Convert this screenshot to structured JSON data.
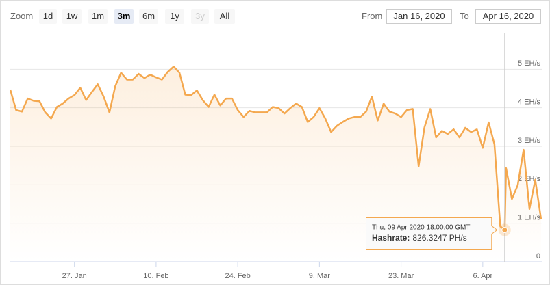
{
  "range_selector": {
    "zoom_label": "Zoom",
    "buttons": [
      "1d",
      "1w",
      "1m",
      "3m",
      "6m",
      "1y",
      "3y",
      "All"
    ],
    "selected": "3m",
    "disabled": [
      "3y"
    ],
    "from_label": "From",
    "from": "Jan 16, 2020",
    "to_label": "To",
    "to": "Apr 16, 2020"
  },
  "chart_data": {
    "type": "area",
    "color": "#f4a84f",
    "x": [
      "2020-01-16",
      "2020-01-17",
      "2020-01-18",
      "2020-01-19",
      "2020-01-20",
      "2020-01-21",
      "2020-01-22",
      "2020-01-23",
      "2020-01-24",
      "2020-01-25",
      "2020-01-26",
      "2020-01-27",
      "2020-01-28",
      "2020-01-29",
      "2020-01-30",
      "2020-01-31",
      "2020-02-01",
      "2020-02-02",
      "2020-02-03",
      "2020-02-04",
      "2020-02-05",
      "2020-02-06",
      "2020-02-07",
      "2020-02-08",
      "2020-02-09",
      "2020-02-10",
      "2020-02-11",
      "2020-02-12",
      "2020-02-13",
      "2020-02-14",
      "2020-02-15",
      "2020-02-16",
      "2020-02-17",
      "2020-02-18",
      "2020-02-19",
      "2020-02-20",
      "2020-02-21",
      "2020-02-22",
      "2020-02-23",
      "2020-02-24",
      "2020-02-25",
      "2020-02-26",
      "2020-02-27",
      "2020-02-28",
      "2020-02-29",
      "2020-03-01",
      "2020-03-02",
      "2020-03-03",
      "2020-03-04",
      "2020-03-05",
      "2020-03-06",
      "2020-03-07",
      "2020-03-08",
      "2020-03-09",
      "2020-03-10",
      "2020-03-11",
      "2020-03-12",
      "2020-03-13",
      "2020-03-14",
      "2020-03-15",
      "2020-03-16",
      "2020-03-17",
      "2020-03-18",
      "2020-03-19",
      "2020-03-20",
      "2020-03-21",
      "2020-03-22",
      "2020-03-23",
      "2020-03-24",
      "2020-03-25",
      "2020-03-26",
      "2020-03-27",
      "2020-03-28",
      "2020-03-29",
      "2020-03-30",
      "2020-03-31",
      "2020-04-01",
      "2020-04-02",
      "2020-04-03",
      "2020-04-04",
      "2020-04-05",
      "2020-04-06",
      "2020-04-07",
      "2020-04-08",
      "2020-04-09",
      "2020-04-09 18:00",
      "2020-04-10",
      "2020-04-11",
      "2020-04-12",
      "2020-04-13",
      "2020-04-14",
      "2020-04-15",
      "2020-04-16"
    ],
    "values": [
      4.47,
      3.94,
      3.9,
      4.24,
      4.18,
      4.17,
      3.88,
      3.72,
      4.02,
      4.11,
      4.24,
      4.33,
      4.52,
      4.2,
      4.41,
      4.61,
      4.29,
      3.88,
      4.56,
      4.91,
      4.73,
      4.73,
      4.88,
      4.77,
      4.86,
      4.79,
      4.73,
      4.93,
      5.07,
      4.91,
      4.34,
      4.33,
      4.45,
      4.2,
      4.02,
      4.34,
      4.06,
      4.24,
      4.24,
      3.94,
      3.76,
      3.92,
      3.88,
      3.88,
      3.88,
      4.02,
      3.99,
      3.85,
      3.99,
      4.11,
      4.02,
      3.63,
      3.76,
      3.99,
      3.72,
      3.37,
      3.53,
      3.63,
      3.72,
      3.76,
      3.76,
      3.9,
      4.29,
      3.67,
      4.11,
      3.9,
      3.85,
      3.76,
      3.94,
      3.97,
      2.48,
      3.49,
      3.97,
      3.23,
      3.4,
      3.32,
      3.44,
      3.23,
      3.48,
      3.37,
      3.44,
      2.96,
      3.62,
      3.05,
      0.92,
      0.8263247,
      2.43,
      1.63,
      1.99,
      2.91,
      1.37,
      2.13,
      1.1
    ],
    "xlim": [
      "2020-01-16",
      "2020-04-16"
    ],
    "xticks": [
      {
        "value": "2020-01-27",
        "label": "27. Jan"
      },
      {
        "value": "2020-02-10",
        "label": "10. Feb"
      },
      {
        "value": "2020-02-24",
        "label": "24. Feb"
      },
      {
        "value": "2020-03-09",
        "label": "9. Mar"
      },
      {
        "value": "2020-03-23",
        "label": "23. Mar"
      },
      {
        "value": "2020-04-06",
        "label": "6. Apr"
      }
    ],
    "ylim": [
      0,
      6
    ],
    "yticks": [
      0,
      {
        "value": 1,
        "label": "1 EH/s"
      },
      {
        "value": 2,
        "label": "2 EH/s"
      },
      {
        "value": 3,
        "label": "3 EH/s"
      },
      {
        "value": 4,
        "label": "4 EH/s"
      },
      {
        "value": 5,
        "label": "5 EH/s"
      }
    ],
    "grid": true,
    "tooltip": {
      "x": "2020-04-09 18:00",
      "header": "Thu, 09 Apr 2020 18:00:00 GMT",
      "label": "Hashrate:",
      "value_label": "826.3247 PH/s"
    }
  }
}
